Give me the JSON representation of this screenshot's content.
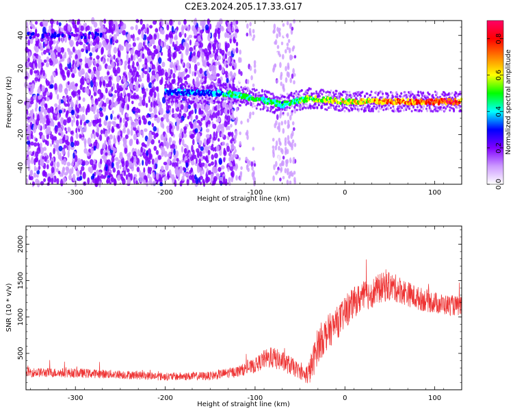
{
  "title": "C2E3.2024.205.17.33.G17",
  "chart_data": [
    {
      "type": "heatmap",
      "xlabel": "Height of straight line (km)",
      "ylabel": "Frequency (Hz)",
      "xlim": [
        -355,
        130
      ],
      "ylim": [
        -50,
        49
      ],
      "xticks": [
        -300,
        -200,
        -100,
        0,
        100
      ],
      "yticks": [
        -40,
        -20,
        0,
        20,
        40
      ],
      "colorbar": {
        "label": "Normalized spectral amplitude",
        "range": [
          0,
          0.9
        ],
        "ticks": [
          0.0,
          0.2,
          0.4,
          0.6,
          0.8
        ],
        "colormap": [
          "#ffffff",
          "#cc99ff",
          "#8000ff",
          "#0000ff",
          "#00ffff",
          "#00ff00",
          "#ffff00",
          "#ff8000",
          "#ff0000",
          "#ff0066"
        ]
      },
      "features": {
        "noise_region_x": [
          -355,
          -120
        ],
        "noise_region_y": [
          -50,
          49
        ],
        "carrier_line": [
          {
            "x": -200,
            "freq": 6,
            "amp": 0.35
          },
          {
            "x": -160,
            "freq": 5,
            "amp": 0.35
          },
          {
            "x": -130,
            "freq": 5,
            "amp": 0.45
          },
          {
            "x": -100,
            "freq": 2,
            "amp": 0.5
          },
          {
            "x": -70,
            "freq": -2,
            "amp": 0.45
          },
          {
            "x": -40,
            "freq": 2,
            "amp": 0.55
          },
          {
            "x": 0,
            "freq": 0,
            "amp": 0.65
          },
          {
            "x": 50,
            "freq": 0,
            "amp": 0.75
          },
          {
            "x": 100,
            "freq": 0,
            "amp": 0.8
          },
          {
            "x": 130,
            "freq": 0,
            "amp": 0.8
          }
        ],
        "upper_band": {
          "x": [
            -355,
            -270
          ],
          "freq": 40
        }
      }
    },
    {
      "type": "line",
      "xlabel": "Height of straight line (km)",
      "ylabel": "SNR (10 * v/v)",
      "xlim": [
        -355,
        130
      ],
      "ylim": [
        0,
        2250
      ],
      "xticks": [
        -300,
        -200,
        -100,
        0,
        100
      ],
      "yticks": [
        500,
        1000,
        1500,
        2000
      ],
      "color": "#ee3333",
      "series": [
        {
          "x": [
            -355,
            -300,
            -250,
            -200,
            -150,
            -120,
            -100,
            -90,
            -80,
            -70,
            -60,
            -50,
            -45,
            -40,
            -35,
            -30,
            -25,
            -20,
            -10,
            0,
            10,
            20,
            30,
            40,
            50,
            60,
            70,
            80,
            90,
            100,
            110,
            120,
            130
          ],
          "mean": [
            240,
            230,
            210,
            180,
            190,
            250,
            330,
            420,
            440,
            390,
            330,
            250,
            200,
            230,
            400,
            620,
            700,
            780,
            900,
            1050,
            1200,
            1280,
            1330,
            1400,
            1420,
            1380,
            1320,
            1260,
            1230,
            1200,
            1170,
            1160,
            1140
          ],
          "spread": [
            130,
            130,
            120,
            110,
            120,
            150,
            200,
            260,
            300,
            280,
            260,
            200,
            200,
            350,
            450,
            500,
            500,
            480,
            450,
            450,
            420,
            420,
            420,
            420,
            400,
            380,
            350,
            330,
            320,
            300,
            290,
            280,
            270
          ]
        }
      ]
    }
  ]
}
